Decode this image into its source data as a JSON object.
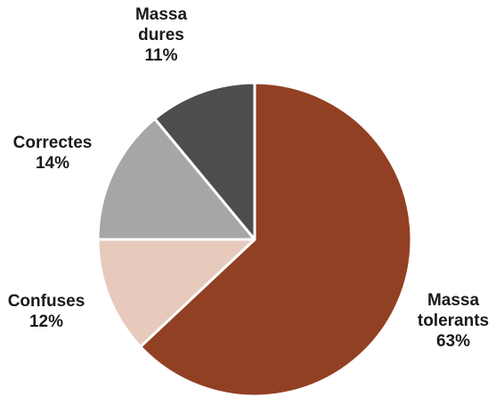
{
  "chart_data": {
    "type": "pie",
    "title": "",
    "slices": [
      {
        "label_lines": [
          "Massa",
          "tolerants"
        ],
        "value": 63,
        "value_label": "63%",
        "color": "#924024"
      },
      {
        "label_lines": [
          "Confuses"
        ],
        "value": 12,
        "value_label": "12%",
        "color": "#E7CABC"
      },
      {
        "label_lines": [
          "Correctes"
        ],
        "value": 14,
        "value_label": "14%",
        "color": "#A6A6A6"
      },
      {
        "label_lines": [
          "Massa",
          "dures"
        ],
        "value": 11,
        "value_label": "11%",
        "color": "#4D4D4D"
      }
    ],
    "start": "12 o'clock",
    "direction": "clockwise",
    "legend": "none",
    "slice_border_color": "#FFFFFF"
  }
}
